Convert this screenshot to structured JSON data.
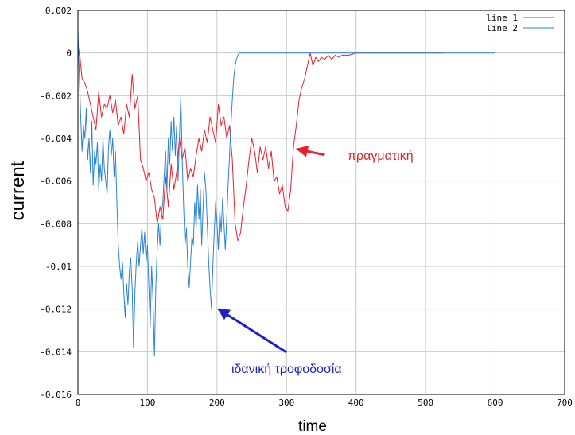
{
  "chart_data": {
    "type": "line",
    "xlabel": "time",
    "ylabel": "current",
    "xlim": [
      0,
      700
    ],
    "ylim": [
      -0.016,
      0.002
    ],
    "xticks": [
      "0",
      "100",
      "200",
      "300",
      "400",
      "500",
      "600",
      "700"
    ],
    "yticks": [
      "0.002",
      "0",
      "-0.002",
      "-0.004",
      "-0.006",
      "-0.008",
      "-0.01",
      "-0.012",
      "-0.014",
      "-0.016"
    ],
    "grid": true,
    "legend_position": "top-right",
    "series": [
      {
        "name": "line 1",
        "color": "#e8202a",
        "x": [
          0,
          3,
          6,
          10,
          14,
          18,
          22,
          26,
          30,
          34,
          38,
          42,
          46,
          50,
          54,
          58,
          62,
          66,
          70,
          74,
          78,
          82,
          86,
          90,
          94,
          98,
          102,
          106,
          110,
          114,
          118,
          122,
          126,
          130,
          134,
          138,
          142,
          146,
          150,
          154,
          158,
          162,
          166,
          170,
          174,
          178,
          182,
          186,
          190,
          194,
          198,
          202,
          206,
          210,
          214,
          218,
          222,
          226,
          230,
          234,
          238,
          242,
          246,
          250,
          254,
          258,
          262,
          266,
          270,
          274,
          278,
          282,
          286,
          290,
          294,
          298,
          302,
          306,
          310,
          314,
          318,
          322,
          326,
          330,
          334,
          338,
          342,
          346,
          350,
          355,
          360,
          365,
          370,
          375,
          380,
          390,
          400,
          420,
          450,
          500,
          525
        ],
        "y": [
          0.0004,
          -0.0002,
          -0.0012,
          -0.0014,
          -0.0018,
          -0.0024,
          -0.003,
          -0.0036,
          -0.0018,
          -0.003,
          -0.0024,
          -0.0026,
          -0.002,
          -0.0028,
          -0.0022,
          -0.0034,
          -0.003,
          -0.0038,
          -0.0024,
          -0.003,
          -0.001,
          -0.0026,
          -0.002,
          -0.005,
          -0.0054,
          -0.006,
          -0.0056,
          -0.0064,
          -0.0068,
          -0.008,
          -0.0072,
          -0.0078,
          -0.0058,
          -0.0072,
          -0.0052,
          -0.0064,
          -0.0056,
          -0.004,
          -0.005,
          -0.0044,
          -0.006,
          -0.0054,
          -0.0058,
          -0.0048,
          -0.004,
          -0.0046,
          -0.0036,
          -0.0042,
          -0.003,
          -0.0036,
          -0.0042,
          -0.0024,
          -0.0034,
          -0.003,
          -0.004,
          -0.0034,
          -0.005,
          -0.008,
          -0.0088,
          -0.0084,
          -0.0072,
          -0.0062,
          -0.005,
          -0.004,
          -0.0046,
          -0.0056,
          -0.0044,
          -0.005,
          -0.0044,
          -0.0054,
          -0.0046,
          -0.006,
          -0.0058,
          -0.0066,
          -0.0062,
          -0.0072,
          -0.0074,
          -0.0064,
          -0.0044,
          -0.0034,
          -0.0022,
          -0.0016,
          -0.0012,
          -0.0006,
          0.0,
          -0.0006,
          -0.0002,
          -0.0004,
          -0.0002,
          -0.0003,
          -0.0001,
          -0.0003,
          -0.0001,
          -0.0002,
          -0.0001,
          -0.0001,
          0.0,
          0.0,
          0.0,
          0.0,
          0.0
        ]
      },
      {
        "name": "line 2",
        "color": "#2a82d8",
        "x": [
          0,
          2,
          4,
          6,
          8,
          10,
          12,
          14,
          16,
          18,
          20,
          22,
          24,
          26,
          28,
          30,
          32,
          34,
          36,
          38,
          40,
          42,
          44,
          46,
          48,
          50,
          52,
          54,
          56,
          58,
          60,
          62,
          64,
          66,
          68,
          70,
          72,
          74,
          76,
          78,
          80,
          82,
          84,
          86,
          88,
          90,
          92,
          94,
          96,
          98,
          100,
          102,
          104,
          106,
          108,
          110,
          112,
          114,
          116,
          118,
          120,
          122,
          124,
          126,
          128,
          130,
          132,
          134,
          136,
          138,
          140,
          142,
          144,
          146,
          148,
          150,
          152,
          154,
          156,
          158,
          160,
          162,
          164,
          166,
          168,
          170,
          172,
          174,
          176,
          178,
          180,
          182,
          184,
          186,
          188,
          190,
          192,
          194,
          196,
          198,
          200,
          202,
          204,
          206,
          208,
          210,
          212,
          214,
          216,
          218,
          220,
          222,
          224,
          226,
          228,
          230,
          232,
          234,
          236,
          240,
          260,
          300,
          400,
          500,
          600
        ],
        "y": [
          0.001,
          -0.001,
          -0.003,
          -0.0046,
          -0.0034,
          -0.004,
          -0.0026,
          -0.005,
          -0.004,
          -0.0056,
          -0.0032,
          -0.0062,
          -0.0046,
          -0.0052,
          -0.0042,
          -0.0064,
          -0.0052,
          -0.006,
          -0.004,
          -0.0054,
          -0.006,
          -0.0066,
          -0.0044,
          -0.0036,
          -0.0048,
          -0.004,
          -0.0058,
          -0.0046,
          -0.007,
          -0.009,
          -0.01,
          -0.0106,
          -0.0098,
          -0.0112,
          -0.0124,
          -0.0108,
          -0.0118,
          -0.0102,
          -0.0096,
          -0.011,
          -0.0138,
          -0.0112,
          -0.0098,
          -0.0088,
          -0.01,
          -0.009,
          -0.0082,
          -0.0094,
          -0.0084,
          -0.0098,
          -0.009,
          -0.011,
          -0.0128,
          -0.01,
          -0.0116,
          -0.0142,
          -0.011,
          -0.0092,
          -0.008,
          -0.009,
          -0.0076,
          -0.007,
          -0.0058,
          -0.0046,
          -0.0064,
          -0.004,
          -0.0052,
          -0.0032,
          -0.0046,
          -0.003,
          -0.0048,
          -0.0034,
          -0.006,
          -0.004,
          -0.002,
          -0.005,
          -0.0072,
          -0.009,
          -0.0082,
          -0.01,
          -0.011,
          -0.0098,
          -0.0086,
          -0.009,
          -0.007,
          -0.0082,
          -0.0062,
          -0.0078,
          -0.0064,
          -0.009,
          -0.0072,
          -0.0056,
          -0.0064,
          -0.008,
          -0.0098,
          -0.011,
          -0.012,
          -0.01,
          -0.0084,
          -0.007,
          -0.008,
          -0.0092,
          -0.0074,
          -0.0084,
          -0.0068,
          -0.008,
          -0.0092,
          -0.0078,
          -0.0062,
          -0.0048,
          -0.0034,
          -0.0022,
          -0.0012,
          -0.0006,
          -0.0003,
          -0.0001,
          0.0,
          0.0,
          0.0,
          0.0,
          0.0,
          0.0,
          0.0,
          0.0,
          0.0
        ]
      }
    ],
    "annotations": [
      {
        "text": "πραγματική",
        "color": "#e8202a",
        "target": [
          315,
          -0.0045
        ],
        "label_pos": [
          435,
          -0.005
        ]
      },
      {
        "text": "ιδανική τροφοδοσία",
        "color": "#1a22c8",
        "target": [
          202,
          -0.012
        ],
        "label_pos": [
          300,
          -0.015
        ]
      }
    ]
  }
}
